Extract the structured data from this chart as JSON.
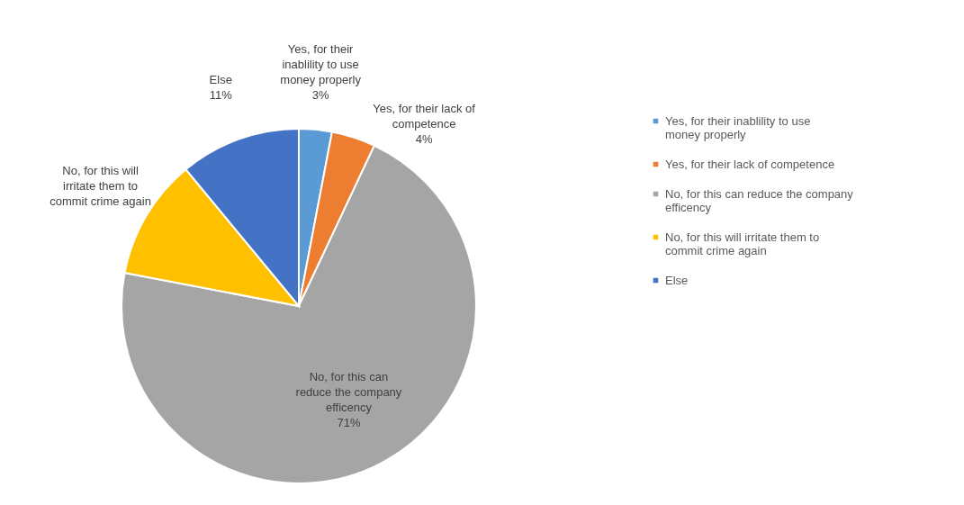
{
  "chart_data": {
    "type": "pie",
    "categories": [
      "Yes, for their inablility to use money properly",
      "Yes, for their lack of competence",
      "No, for this can reduce the company efficency",
      "No, for this will irritate them to commit crime again",
      "Else"
    ],
    "values": [
      3,
      4,
      71,
      11,
      11
    ],
    "colors": [
      "#5b9bd5",
      "#ed7d31",
      "#a5a5a5",
      "#ffc000",
      "#4472c4"
    ],
    "value_labels": [
      "3%",
      "4%",
      "71%",
      null,
      "11%"
    ],
    "legend": "right"
  }
}
